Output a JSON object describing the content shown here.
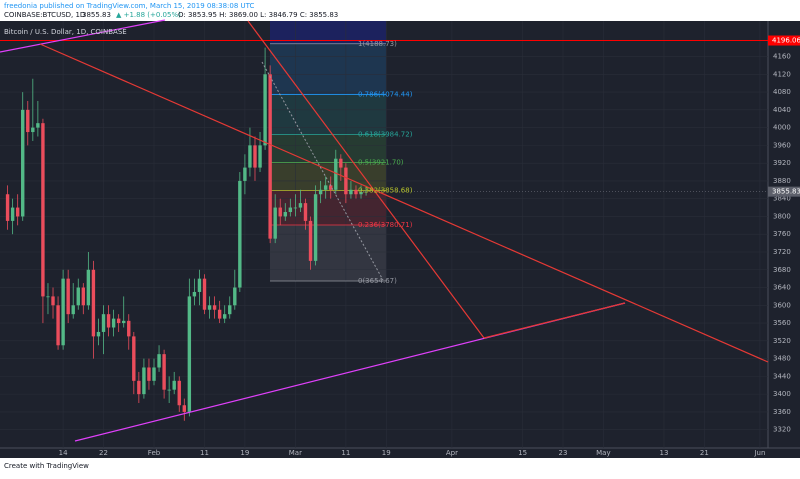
{
  "header": {
    "publisher": "freedonia published on TradingView.com, March 15, 2019 08:38:08 UTC",
    "symbol": "COINBASE:BTCUSD, 1D",
    "price": "3855.83",
    "change": "▲ +1.88 (+0.05%)",
    "ohlc": "O: 3853.95  H: 3869.00  L: 3846.79  C: 3855.83"
  },
  "footer": {
    "brand": "Create with TradingView"
  },
  "chart_data": {
    "type": "candlestick",
    "title": "Bitcoin / U.S. Dollar, 1D, COINBASE",
    "up_color": "#53b987",
    "down_color": "#eb4d5c",
    "x": [
      3,
      4,
      5,
      6,
      7,
      8,
      9,
      10,
      11,
      12,
      13,
      14,
      15,
      16,
      17,
      18,
      19,
      20,
      21,
      22,
      23,
      24,
      25,
      26,
      27,
      28,
      29,
      30,
      31,
      32,
      33,
      34,
      35,
      36,
      37,
      38,
      39,
      40,
      41,
      42,
      43,
      44,
      45,
      46,
      47,
      48,
      49,
      50,
      51,
      52,
      53,
      54,
      55,
      56,
      57,
      58,
      59,
      60,
      61,
      62,
      63,
      64,
      65,
      66,
      67,
      68,
      69,
      70,
      71,
      72,
      73,
      74
    ],
    "open": [
      3850,
      3790,
      3820,
      3800,
      4040,
      3990,
      4000,
      4010,
      3620,
      3620,
      3600,
      3510,
      3660,
      3580,
      3600,
      3640,
      3600,
      3680,
      3530,
      3540,
      3580,
      3550,
      3570,
      3560,
      3565,
      3530,
      3430,
      3400,
      3460,
      3430,
      3460,
      3490,
      3410,
      3410,
      3430,
      3375,
      3360,
      3620,
      3630,
      3660,
      3590,
      3600,
      3590,
      3570,
      3580,
      3600,
      3640,
      3880,
      3910,
      3960,
      3910,
      3960,
      4120,
      3750,
      3820,
      3800,
      3810,
      3820,
      3820,
      3830,
      3790,
      3700,
      3850,
      3860,
      3870,
      3860,
      3930,
      3910,
      3850,
      3860,
      3850,
      3853.95
    ],
    "high": [
      3870,
      3840,
      3850,
      4080,
      4060,
      4110,
      4060,
      4020,
      3650,
      3640,
      3620,
      3680,
      3680,
      3650,
      3660,
      3650,
      3720,
      3700,
      3570,
      3600,
      3600,
      3590,
      3580,
      3620,
      3580,
      3540,
      3450,
      3480,
      3480,
      3480,
      3510,
      3500,
      3440,
      3450,
      3440,
      3390,
      3660,
      3660,
      3680,
      3670,
      3620,
      3620,
      3610,
      3600,
      3620,
      3680,
      3900,
      3940,
      4000,
      3980,
      3990,
      4180,
      4140,
      3850,
      3840,
      3830,
      3840,
      3850,
      3860,
      3840,
      3800,
      3870,
      3880,
      3890,
      3890,
      3950,
      3940,
      3920,
      3880,
      3870,
      3870,
      3869
    ],
    "low": [
      3770,
      3760,
      3780,
      3790,
      3960,
      3970,
      3980,
      3560,
      3580,
      3570,
      3500,
      3500,
      3560,
      3570,
      3590,
      3580,
      3590,
      3480,
      3510,
      3490,
      3530,
      3530,
      3540,
      3550,
      3500,
      3400,
      3380,
      3390,
      3410,
      3420,
      3450,
      3390,
      3380,
      3400,
      3360,
      3340,
      3350,
      3600,
      3600,
      3580,
      3570,
      3570,
      3560,
      3560,
      3570,
      3590,
      3630,
      3850,
      3890,
      3880,
      3900,
      3950,
      3740,
      3740,
      3780,
      3790,
      3800,
      3800,
      3810,
      3770,
      3680,
      3690,
      3830,
      3840,
      3840,
      3850,
      3880,
      3830,
      3840,
      3840,
      3840,
      3846.79
    ],
    "close": [
      3790,
      3820,
      3800,
      4040,
      3990,
      4000,
      4010,
      3620,
      3620,
      3600,
      3510,
      3660,
      3580,
      3600,
      3640,
      3600,
      3680,
      3530,
      3540,
      3580,
      3550,
      3570,
      3560,
      3565,
      3530,
      3430,
      3400,
      3460,
      3430,
      3460,
      3490,
      3410,
      3410,
      3430,
      3375,
      3360,
      3620,
      3630,
      3660,
      3590,
      3600,
      3590,
      3570,
      3580,
      3600,
      3640,
      3880,
      3910,
      3960,
      3910,
      3960,
      4120,
      3750,
      3820,
      3800,
      3810,
      3820,
      3820,
      3830,
      3790,
      3700,
      3850,
      3860,
      3870,
      3860,
      3930,
      3910,
      3850,
      3860,
      3850,
      3855,
      3855.83
    ],
    "xlim": [
      1.5,
      153.6
    ],
    "ylim": [
      3290,
      4240
    ],
    "xticks": [
      {
        "value": 14,
        "label": "14"
      },
      {
        "value": 22,
        "label": "22"
      },
      {
        "value": 32,
        "label": "Feb"
      },
      {
        "value": 42,
        "label": "11"
      },
      {
        "value": 50,
        "label": "19"
      },
      {
        "value": 60,
        "label": "Mar"
      },
      {
        "value": 70,
        "label": "11"
      },
      {
        "value": 78,
        "label": "19"
      },
      {
        "value": 91,
        "label": "Apr"
      },
      {
        "value": 105,
        "label": "15"
      },
      {
        "value": 113,
        "label": "23"
      },
      {
        "value": 121,
        "label": "May"
      },
      {
        "value": 133,
        "label": "13"
      },
      {
        "value": 141,
        "label": "21"
      },
      {
        "value": 152,
        "label": "Jun"
      }
    ],
    "yticks": [
      3320,
      3360,
      3400,
      3440,
      3480,
      3520,
      3560,
      3600,
      3640,
      3680,
      3720,
      3760,
      3800,
      3840,
      3880,
      3920,
      3960,
      4000,
      4040,
      4080,
      4120,
      4160
    ],
    "grid": true,
    "fib_levels": [
      {
        "label": "1(4188.73)",
        "value": 4188.73,
        "color": "#9598a1"
      },
      {
        "label": "0.786(4074.44)",
        "value": 4074.44,
        "color": "#2196f3"
      },
      {
        "label": "0.618(3984.72)",
        "value": 3984.72,
        "color": "#26a69a"
      },
      {
        "label": "0.5(3921.70)",
        "value": 3921.7,
        "color": "#4caf50"
      },
      {
        "label": "0.382(3858.68)",
        "value": 3858.68,
        "color": "#b5c22a"
      },
      {
        "label": "0.236(3780.71)",
        "value": 3780.71,
        "color": "#f23645"
      },
      {
        "label": "0(3654.67)",
        "value": 3654.67,
        "color": "#9598a1"
      }
    ],
    "hline": {
      "label": "4196.06",
      "value": 4196.06,
      "color": "#ff0000"
    },
    "last_price": {
      "label": "3855.83",
      "value": 3855.83,
      "color": "#5d606b"
    }
  }
}
